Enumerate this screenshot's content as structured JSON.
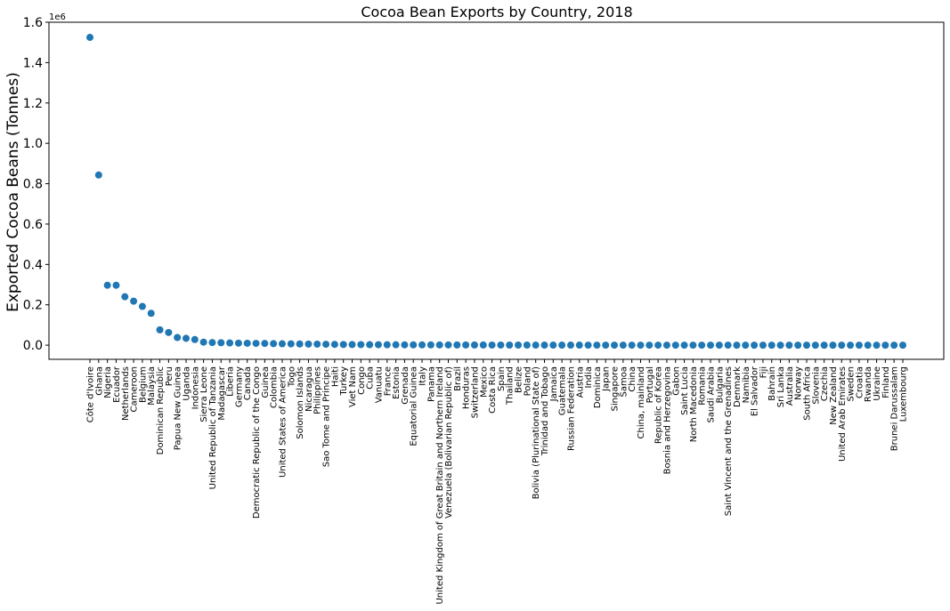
{
  "chart_data": {
    "type": "scatter",
    "title": "Cocoa Bean Exports by Country, 2018",
    "xlabel": "",
    "ylabel": "Exported Cocoa Beans (Tonnes)",
    "y_offset_label": "1e6",
    "ylim": [
      -70000,
      1600000
    ],
    "yticks": [
      0,
      200000,
      400000,
      600000,
      800000,
      1000000,
      1200000,
      1400000,
      1600000
    ],
    "ytick_labels": [
      "0.0",
      "0.2",
      "0.4",
      "0.6",
      "0.8",
      "1.0",
      "1.2",
      "1.4",
      "1.6"
    ],
    "grid": false,
    "marker_color": "#1f77b4",
    "categories": [
      "Côte d'Ivoire",
      "Ghana",
      "Nigeria",
      "Ecuador",
      "Netherlands",
      "Cameroon",
      "Belgium",
      "Malaysia",
      "Dominican Republic",
      "Peru",
      "Papua New Guinea",
      "Uganda",
      "Indonesia",
      "Sierra Leone",
      "United Republic of Tanzania",
      "Madagascar",
      "Liberia",
      "Germany",
      "Canada",
      "Democratic Republic of the Congo",
      "Guinea",
      "Colombia",
      "United States of America",
      "Togo",
      "Solomon Islands",
      "Nicaragua",
      "Philippines",
      "Sao Tome and Principe",
      "Haiti",
      "Turkey",
      "Viet Nam",
      "Congo",
      "Cuba",
      "Vanuatu",
      "France",
      "Estonia",
      "Grenada",
      "Equatorial Guinea",
      "Italy",
      "Panama",
      "United Kingdom of Great Britain and Northern Ireland",
      "Venezuela (Bolivarian Republic of)",
      "Brazil",
      "Honduras",
      "Switzerland",
      "Mexico",
      "Costa Rica",
      "Spain",
      "Thailand",
      "Belize",
      "Poland",
      "Bolivia (Plurinational State of)",
      "Trinidad and Tobago",
      "Jamaica",
      "Guatemala",
      "Russian Federation",
      "Austria",
      "India",
      "Dominica",
      "Japan",
      "Singapore",
      "Samoa",
      "China",
      "China, mainland",
      "Portugal",
      "Republic of Korea",
      "Bosnia and Herzegovina",
      "Gabon",
      "Saint Lucia",
      "North Macedonia",
      "Romania",
      "Saudi Arabia",
      "Bulgaria",
      "Saint Vincent and the Grenadines",
      "Denmark",
      "Namibia",
      "El Salvador",
      "Fiji",
      "Bahrain",
      "Sri Lanka",
      "Australia",
      "Norway",
      "South Africa",
      "Slovenia",
      "Czechia",
      "New Zealand",
      "United Arab Emirates",
      "Sweden",
      "Croatia",
      "Rwanda",
      "Ukraine",
      "Finland",
      "Brunei Darussalam",
      "Luxembourg"
    ],
    "values": [
      1525000,
      843000,
      297000,
      297000,
      240000,
      218000,
      192000,
      158000,
      76000,
      63000,
      38000,
      34000,
      28000,
      15000,
      13000,
      12000,
      11000,
      10000,
      9500,
      9000,
      8500,
      7500,
      7000,
      6500,
      6000,
      5500,
      5000,
      4500,
      4000,
      3500,
      3000,
      2800,
      2600,
      2400,
      2200,
      2000,
      1800,
      1600,
      1500,
      1400,
      1300,
      1200,
      1100,
      1000,
      900,
      800,
      700,
      600,
      550,
      500,
      450,
      400,
      350,
      300,
      280,
      260,
      240,
      220,
      200,
      180,
      160,
      140,
      120,
      100,
      90,
      80,
      70,
      60,
      50,
      45,
      40,
      35,
      30,
      25,
      20,
      18,
      16,
      14,
      12,
      10,
      9,
      8,
      7,
      6,
      5,
      4,
      3,
      2,
      1.5,
      1,
      0.8,
      0.5,
      0.3,
      0.1
    ]
  }
}
